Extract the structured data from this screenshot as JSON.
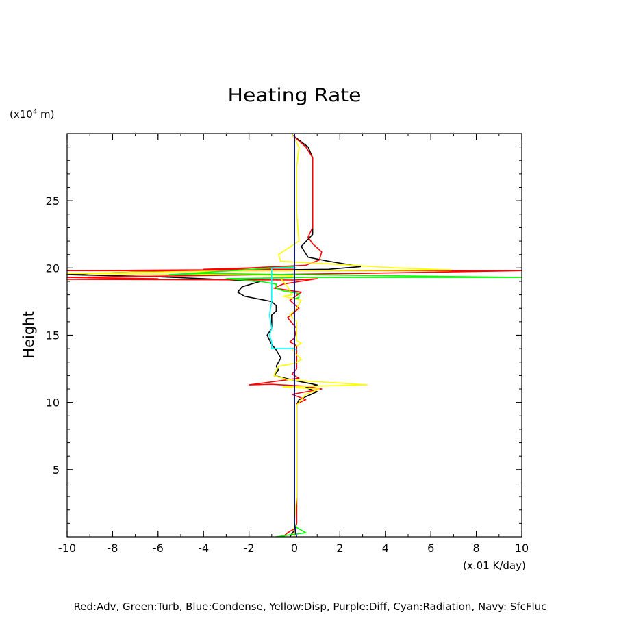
{
  "chart_data": {
    "type": "line",
    "title": "Heating Rate",
    "xlabel": "(x.01 K/day)",
    "ylabel": "Height",
    "yunit_prefix": "(x10",
    "yunit_exp": "4",
    "yunit_suffix": " m)",
    "xlim": [
      -10,
      10
    ],
    "ylim": [
      0,
      30
    ],
    "xticks": [
      -10,
      -8,
      -6,
      -4,
      -2,
      0,
      2,
      4,
      6,
      8,
      10
    ],
    "yticks": [
      5,
      10,
      15,
      20,
      25
    ],
    "grid": false,
    "footer": "Red:Adv, Green:Turb, Blue:Condense, Yellow:Disp, Purple:Diff, Cyan:Radiation, Navy: SfcFluc",
    "series": [
      {
        "color": "#000000",
        "points": [
          [
            -0.1,
            29.9
          ],
          [
            0.6,
            29.0
          ],
          [
            0.8,
            28.2
          ],
          [
            0.8,
            26
          ],
          [
            0.8,
            23
          ],
          [
            0.8,
            22.5
          ],
          [
            0.3,
            21.6
          ],
          [
            0.6,
            20.8
          ],
          [
            1.5,
            20.5
          ],
          [
            2.9,
            20.1
          ],
          [
            1.5,
            19.9
          ],
          [
            -4,
            19.8
          ],
          [
            -8,
            19.65
          ],
          [
            -10,
            19.5
          ],
          [
            -6,
            19.35
          ],
          [
            -4,
            19.2
          ],
          [
            -1.5,
            19.0
          ],
          [
            -2.3,
            18.6
          ],
          [
            -2.5,
            18.2
          ],
          [
            -2.2,
            17.9
          ],
          [
            -1.6,
            17.7
          ],
          [
            -1.0,
            17.5
          ],
          [
            -0.8,
            17.2
          ],
          [
            -0.8,
            16.8
          ],
          [
            -1.0,
            16.5
          ],
          [
            -1.0,
            15.5
          ],
          [
            -1.2,
            15.0
          ],
          [
            -1.0,
            14.3
          ],
          [
            -0.8,
            13.9
          ],
          [
            -0.6,
            13.3
          ],
          [
            -0.8,
            12.7
          ],
          [
            -0.7,
            12.4
          ],
          [
            -0.9,
            12.0
          ],
          [
            -0.4,
            11.8
          ],
          [
            0.1,
            11.6
          ],
          [
            1.0,
            11.3
          ],
          [
            0.5,
            11.1
          ],
          [
            1.0,
            10.8
          ],
          [
            0.6,
            10.5
          ],
          [
            0.2,
            10.2
          ],
          [
            0.1,
            9.8
          ],
          [
            0.1,
            5.0
          ],
          [
            0.1,
            1.0
          ],
          [
            0.0,
            0.5
          ],
          [
            -0.2,
            0.0
          ]
        ]
      },
      {
        "color": "#ff0000",
        "points": [
          [
            -0.1,
            29.9
          ],
          [
            0.5,
            29.0
          ],
          [
            0.8,
            28.2
          ],
          [
            0.8,
            23
          ],
          [
            0.6,
            22.3
          ],
          [
            0.8,
            21.8
          ],
          [
            1.2,
            21.2
          ],
          [
            1.1,
            20.6
          ],
          [
            0.5,
            20.2
          ],
          [
            -2,
            20.0
          ],
          [
            -4,
            19.9
          ],
          [
            0,
            19.9
          ],
          [
            -10,
            19.8
          ],
          [
            5,
            19.8
          ],
          [
            10,
            19.8
          ],
          [
            3,
            19.6
          ],
          [
            -10,
            19.3
          ],
          [
            -6,
            19.2
          ],
          [
            -10,
            19.15
          ],
          [
            0,
            19.1
          ],
          [
            1,
            19.2
          ],
          [
            -0.5,
            18.8
          ],
          [
            -0.9,
            18.5
          ],
          [
            0.3,
            18.2
          ],
          [
            -0.2,
            17.6
          ],
          [
            0.2,
            17.0
          ],
          [
            -0.3,
            16.3
          ],
          [
            0.1,
            15.5
          ],
          [
            0.0,
            14.8
          ],
          [
            -0.2,
            14.5
          ],
          [
            0.1,
            14.2
          ],
          [
            0.1,
            13.2
          ],
          [
            0.1,
            12.5
          ],
          [
            -0.1,
            12.1
          ],
          [
            0.2,
            11.8
          ],
          [
            -2,
            11.3
          ],
          [
            -1,
            11.35
          ],
          [
            0.5,
            11.2
          ],
          [
            1.2,
            11.0
          ],
          [
            -0.1,
            10.6
          ],
          [
            0.5,
            10.2
          ],
          [
            0.1,
            9.9
          ],
          [
            0.1,
            6.0
          ],
          [
            0.1,
            1.0
          ],
          [
            0.0,
            0.6
          ],
          [
            -0.3,
            0.3
          ],
          [
            -0.5,
            0.0
          ]
        ]
      },
      {
        "color": "#ffff00",
        "points": [
          [
            -0.1,
            29.9
          ],
          [
            0.2,
            29.0
          ],
          [
            0.1,
            27.5
          ],
          [
            0.1,
            26
          ],
          [
            0.1,
            24
          ],
          [
            0.2,
            22.0
          ],
          [
            -0.7,
            21.0
          ],
          [
            -0.6,
            20.5
          ],
          [
            1.5,
            20.3
          ],
          [
            4.5,
            20.0
          ],
          [
            6.9,
            19.85
          ],
          [
            -4,
            19.75
          ],
          [
            -10,
            19.6
          ],
          [
            -2,
            19.5
          ],
          [
            0,
            19.4
          ],
          [
            -0.6,
            19.2
          ],
          [
            -0.3,
            18.6
          ],
          [
            -0.1,
            18.0
          ],
          [
            -0.5,
            17.9
          ],
          [
            0.3,
            17.6
          ],
          [
            0.1,
            17.0
          ],
          [
            -0.2,
            16.5
          ],
          [
            0.1,
            16.0
          ],
          [
            0.1,
            15.0
          ],
          [
            0.1,
            14.6
          ],
          [
            0.3,
            14.4
          ],
          [
            -0.1,
            14.0
          ],
          [
            0.0,
            13.7
          ],
          [
            0.3,
            13.2
          ],
          [
            0.0,
            12.9
          ],
          [
            -0.7,
            12.7
          ],
          [
            -0.9,
            12.0
          ],
          [
            -0.3,
            11.7
          ],
          [
            0.5,
            11.6
          ],
          [
            3.2,
            11.3
          ],
          [
            -0.5,
            11.15
          ],
          [
            1.1,
            11.0
          ],
          [
            0.5,
            10.6
          ],
          [
            0.3,
            10.2
          ],
          [
            0.1,
            9.8
          ],
          [
            0.1,
            7.0
          ],
          [
            0.1,
            3.0
          ],
          [
            0.0,
            1.0
          ],
          [
            0.0,
            0.0
          ]
        ]
      },
      {
        "color": "#00ff00",
        "points": [
          [
            0.0,
            30.0
          ],
          [
            0.0,
            20.1
          ],
          [
            -5.5,
            19.5
          ],
          [
            -4,
            19.6
          ],
          [
            -2,
            19.55
          ],
          [
            10,
            19.3
          ],
          [
            0.5,
            19.3
          ],
          [
            -3,
            19.2
          ],
          [
            -1.5,
            19.0
          ],
          [
            -0.8,
            18.8
          ],
          [
            -0.8,
            18.5
          ],
          [
            -0.5,
            18.3
          ],
          [
            0.2,
            18.1
          ],
          [
            0.2,
            17.8
          ],
          [
            0.0,
            17.7
          ],
          [
            0.0,
            12.0
          ],
          [
            0.0,
            1.0
          ],
          [
            0.1,
            0.7
          ],
          [
            0.5,
            0.3
          ],
          [
            -0.8,
            0.0
          ]
        ]
      },
      {
        "color": "#00ffff",
        "points": [
          [
            0.1,
            20.0
          ],
          [
            -1.0,
            20.0
          ],
          [
            -1.0,
            17.5
          ],
          [
            -1.1,
            16.5
          ],
          [
            -1.0,
            15.5
          ],
          [
            -1.1,
            15.0
          ],
          [
            -1.0,
            14.5
          ],
          [
            -1.0,
            14.0
          ],
          [
            0.0,
            14.0
          ],
          [
            0.1,
            13.9
          ]
        ]
      },
      {
        "color": "#0000ff",
        "points": [
          [
            0.0,
            30.0
          ],
          [
            0.0,
            20.0
          ],
          [
            0.0,
            10.0
          ],
          [
            0.0,
            1.0
          ],
          [
            0.05,
            0.3
          ],
          [
            0.1,
            0.0
          ]
        ]
      },
      {
        "color": "#000080",
        "points": [
          [
            0.0,
            30.0
          ],
          [
            0.0,
            20.0
          ],
          [
            0.0,
            10.0
          ],
          [
            0.0,
            1.0
          ],
          [
            0.05,
            0.3
          ],
          [
            0.1,
            0.0
          ]
        ]
      }
    ]
  }
}
